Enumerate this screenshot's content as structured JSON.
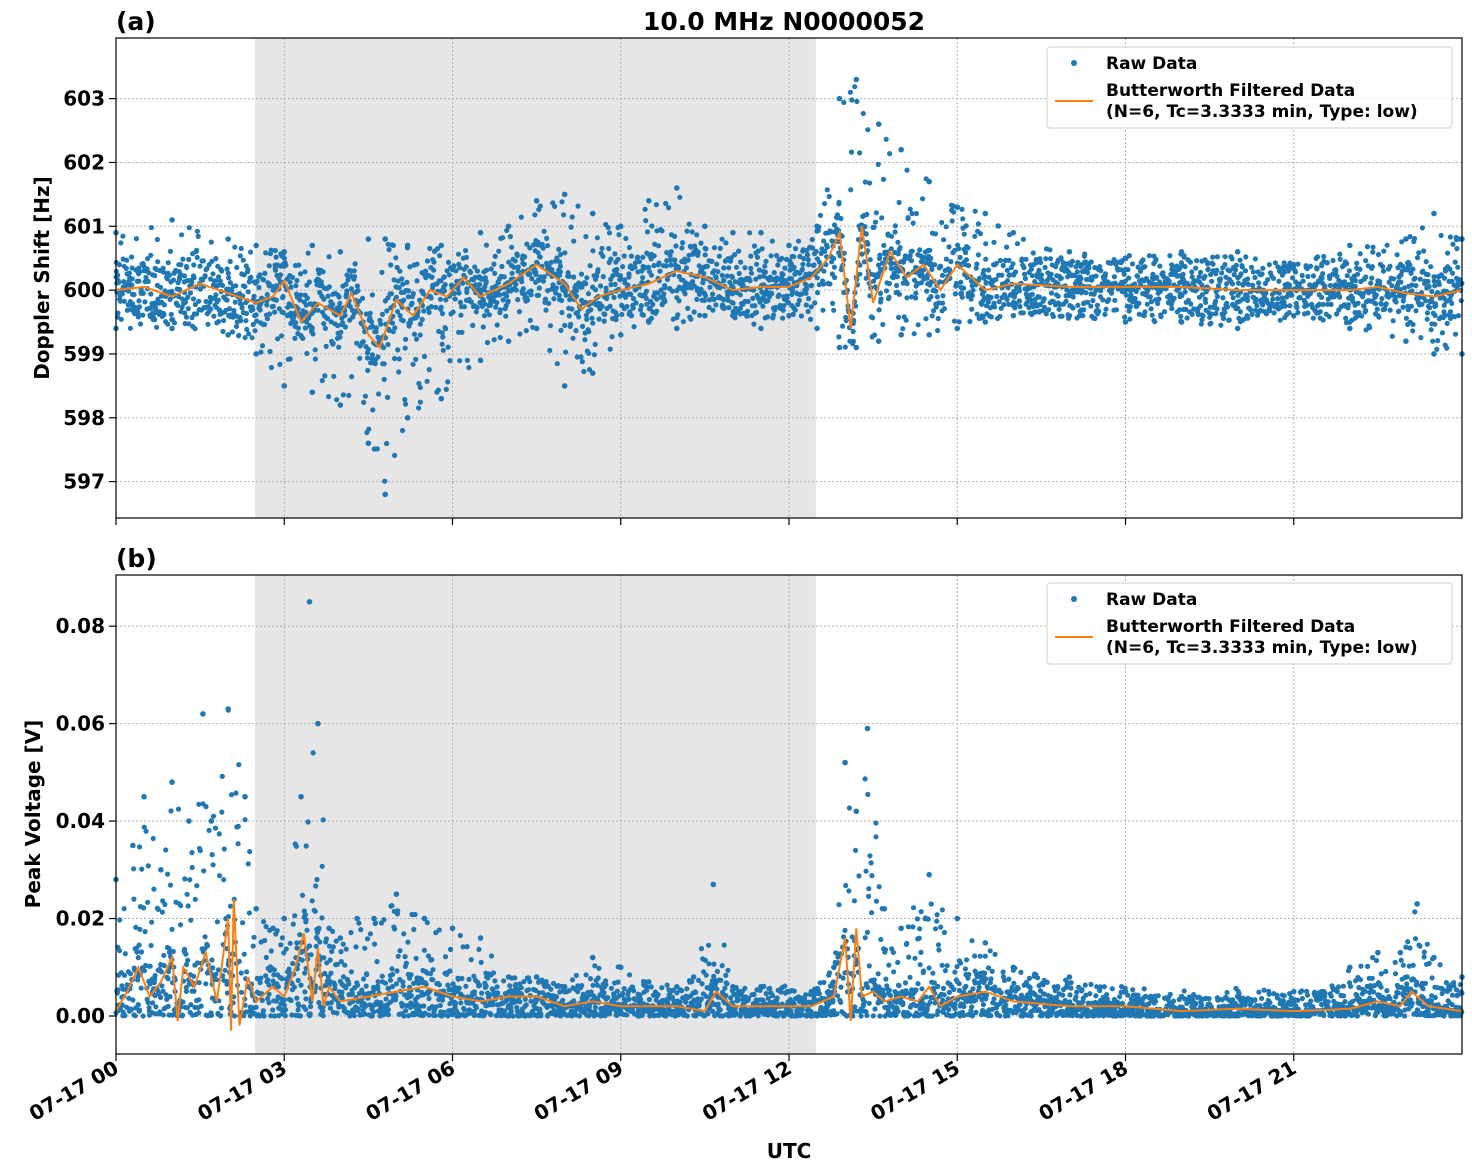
{
  "figure": {
    "title": "10.0 MHz N0000052",
    "xlabel": "UTC",
    "x_tick_labels": [
      "07-17 00",
      "07-17 03",
      "07-17 06",
      "07-17 09",
      "07-17 12",
      "07-17 15",
      "07-17 18",
      "07-17 21"
    ],
    "colors": {
      "raw": "#1f77b4",
      "filtered": "#ff7f0e",
      "shade": "#e6e6e6",
      "grid": "#b0b0b0"
    }
  },
  "legend": {
    "raw_label": "Raw Data",
    "filtered_label_line1": "Butterworth Filtered Data",
    "filtered_label_line2": "(N=6, Tc=3.3333 min, Type: low)"
  },
  "chart_data": [
    {
      "type": "scatter",
      "panel_label": "(a)",
      "ylabel": "Doppler Shift [Hz]",
      "xlim_hours": [
        0,
        24
      ],
      "ylim": [
        596.43,
        603.95
      ],
      "yticks": [
        597,
        598,
        599,
        600,
        601,
        602,
        603
      ],
      "ytick_labels": [
        "597",
        "598",
        "599",
        "600",
        "601",
        "602",
        "603"
      ],
      "shaded_interval_hours": [
        2.48,
        12.48
      ],
      "grid": true,
      "legend_position": "upper right",
      "series": [
        {
          "name": "Raw Data",
          "style": "points",
          "envelope": {
            "x_hours": [
              0,
              1,
              2,
              2.5,
              3,
              3.5,
              4,
              4.5,
              4.8,
              5.2,
              5.8,
              6.5,
              7,
              7.5,
              8,
              8.5,
              9,
              9.5,
              10,
              10.5,
              11,
              11.5,
              12,
              12.5,
              12.9,
              13.2,
              13.6,
              14,
              14.5,
              15,
              15.5,
              16,
              17,
              18,
              19,
              20,
              21,
              22,
              23,
              23.5,
              24
            ],
            "upper": [
              600.9,
              601.1,
              600.8,
              600.7,
              600.6,
              600.7,
              600.6,
              600.8,
              600.8,
              600.7,
              600.7,
              600.9,
              601.0,
              601.4,
              601.5,
              601.2,
              601.0,
              601.4,
              601.6,
              601.0,
              600.9,
              600.9,
              600.7,
              601.0,
              603.0,
              603.3,
              602.6,
              602.2,
              601.7,
              601.3,
              601.2,
              600.9,
              600.6,
              600.5,
              600.6,
              600.6,
              600.4,
              600.7,
              600.8,
              601.2,
              600.8
            ],
            "lower": [
              599.4,
              599.4,
              599.3,
              599.0,
              598.5,
              598.4,
              598.2,
              597.6,
              596.8,
              598.0,
              598.3,
              598.9,
              599.2,
              599.4,
              598.5,
              598.7,
              599.3,
              599.5,
              599.4,
              599.6,
              599.6,
              599.4,
              599.6,
              599.4,
              599.1,
              599.1,
              599.2,
              599.3,
              599.3,
              599.4,
              599.5,
              599.6,
              599.6,
              599.5,
              599.5,
              599.4,
              599.6,
              599.4,
              599.2,
              599.0,
              599.0
            ]
          }
        },
        {
          "name": "Butterworth Filtered Data\n(N=6, Tc=3.3333 min, Type: low)",
          "style": "line",
          "x_hours": [
            0,
            0.5,
            1,
            1.5,
            2,
            2.5,
            2.8,
            3,
            3.3,
            3.6,
            4,
            4.2,
            4.5,
            4.7,
            5,
            5.3,
            5.6,
            5.9,
            6.2,
            6.5,
            7,
            7.5,
            8,
            8.3,
            8.6,
            9,
            9.5,
            10,
            10.5,
            11,
            11.5,
            12,
            12.4,
            12.7,
            12.9,
            13.1,
            13.3,
            13.5,
            13.8,
            14.1,
            14.4,
            14.7,
            15,
            15.5,
            16,
            17,
            18,
            19,
            20,
            21,
            22,
            22.5,
            23,
            23.5,
            24
          ],
          "values": [
            600.0,
            600.05,
            599.9,
            600.1,
            599.95,
            599.8,
            599.9,
            600.15,
            599.5,
            599.8,
            599.6,
            599.95,
            599.3,
            599.1,
            599.85,
            599.6,
            600.0,
            599.9,
            600.2,
            599.9,
            600.1,
            600.4,
            600.1,
            599.7,
            599.9,
            600.0,
            600.1,
            600.3,
            600.2,
            600.0,
            600.05,
            600.05,
            600.2,
            600.5,
            600.9,
            599.4,
            601.0,
            599.8,
            600.6,
            600.2,
            600.4,
            600.0,
            600.4,
            600.0,
            600.1,
            600.05,
            600.05,
            600.05,
            600.0,
            600.0,
            600.0,
            600.05,
            599.95,
            599.9,
            600.0
          ]
        }
      ]
    },
    {
      "type": "scatter",
      "panel_label": "(b)",
      "ylabel": "Peak Voltage [V]",
      "xlim_hours": [
        0,
        24
      ],
      "ylim": [
        -0.0078,
        0.0905
      ],
      "yticks": [
        0.0,
        0.02,
        0.04,
        0.06,
        0.08
      ],
      "ytick_labels": [
        "0.00",
        "0.02",
        "0.04",
        "0.06",
        "0.08"
      ],
      "shaded_interval_hours": [
        2.48,
        12.48
      ],
      "grid": true,
      "legend_position": "upper right",
      "series": [
        {
          "name": "Raw Data",
          "style": "points",
          "envelope": {
            "x_hours": [
              0,
              0.3,
              0.5,
              0.8,
              1.0,
              1.3,
              1.55,
              1.7,
              2.0,
              2.3,
              2.5,
              2.8,
              3.0,
              3.3,
              3.45,
              3.6,
              3.8,
              4.0,
              4.3,
              4.6,
              5.0,
              5.5,
              6.0,
              6.5,
              7.0,
              7.5,
              8.0,
              8.5,
              9.0,
              9.5,
              10.0,
              10.3,
              10.65,
              11.0,
              11.5,
              12.0,
              12.4,
              12.8,
              13.0,
              13.2,
              13.4,
              13.7,
              14.0,
              14.5,
              15.0,
              15.5,
              16.0,
              17.0,
              18.0,
              19.0,
              20.0,
              21.0,
              21.5,
              22.0,
              22.5,
              22.9,
              23.2,
              23.5,
              24.0
            ],
            "upper": [
              0.028,
              0.035,
              0.045,
              0.03,
              0.048,
              0.04,
              0.062,
              0.04,
              0.063,
              0.045,
              0.022,
              0.018,
              0.02,
              0.045,
              0.085,
              0.06,
              0.018,
              0.016,
              0.02,
              0.02,
              0.025,
              0.02,
              0.018,
              0.016,
              0.008,
              0.008,
              0.006,
              0.012,
              0.01,
              0.007,
              0.006,
              0.008,
              0.027,
              0.006,
              0.006,
              0.005,
              0.005,
              0.01,
              0.052,
              0.042,
              0.059,
              0.022,
              0.018,
              0.029,
              0.02,
              0.015,
              0.01,
              0.008,
              0.005,
              0.004,
              0.004,
              0.005,
              0.005,
              0.01,
              0.013,
              0.013,
              0.023,
              0.012,
              0.008
            ]
          }
        },
        {
          "name": "Butterworth Filtered Data\n(N=6, Tc=3.3333 min, Type: low)",
          "style": "line",
          "x_hours": [
            0,
            0.2,
            0.4,
            0.6,
            0.8,
            1.0,
            1.1,
            1.2,
            1.4,
            1.6,
            1.8,
            2.0,
            2.05,
            2.1,
            2.2,
            2.35,
            2.5,
            2.8,
            3.0,
            3.2,
            3.35,
            3.5,
            3.6,
            3.7,
            3.8,
            4.0,
            4.5,
            5.0,
            5.5,
            6.0,
            6.5,
            7.0,
            7.5,
            8.0,
            8.5,
            9.0,
            9.5,
            10.0,
            10.5,
            10.7,
            11.0,
            11.5,
            12.0,
            12.4,
            12.6,
            12.8,
            12.9,
            13.0,
            13.1,
            13.2,
            13.3,
            13.5,
            13.7,
            14.0,
            14.3,
            14.5,
            14.7,
            15.0,
            15.5,
            16.0,
            17.0,
            18.0,
            19.0,
            20.0,
            21.0,
            21.5,
            22.0,
            22.5,
            22.9,
            23.1,
            23.4,
            24.0
          ],
          "values": [
            0.001,
            0.005,
            0.01,
            0.004,
            0.007,
            0.012,
            -0.001,
            0.01,
            0.006,
            0.013,
            0.003,
            0.02,
            -0.003,
            0.024,
            -0.002,
            0.008,
            0.003,
            0.006,
            0.004,
            0.01,
            0.017,
            0.003,
            0.014,
            0.002,
            0.006,
            0.003,
            0.004,
            0.005,
            0.006,
            0.004,
            0.003,
            0.004,
            0.004,
            0.002,
            0.003,
            0.002,
            0.002,
            0.002,
            0.001,
            0.005,
            0.002,
            0.002,
            0.002,
            0.002,
            0.003,
            0.004,
            0.01,
            0.016,
            -0.001,
            0.018,
            0.004,
            0.005,
            0.003,
            0.004,
            0.003,
            0.006,
            0.002,
            0.004,
            0.005,
            0.003,
            0.002,
            0.002,
            0.001,
            0.0015,
            0.001,
            0.0012,
            0.0015,
            0.003,
            0.002,
            0.005,
            0.002,
            0.001
          ]
        }
      ]
    }
  ]
}
